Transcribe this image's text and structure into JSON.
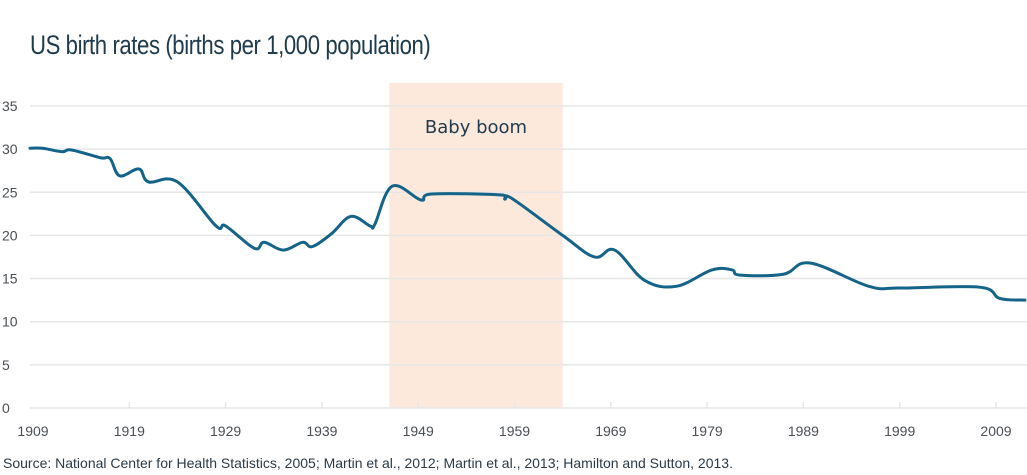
{
  "chart_data": {
    "type": "line",
    "title": "US birth rates (births per 1,000 population)",
    "xlabel": "",
    "ylabel": "",
    "xlim": [
      1909,
      2012
    ],
    "ylim": [
      0,
      35
    ],
    "grid": true,
    "x_ticks": [
      1909,
      1919,
      1929,
      1939,
      1949,
      1959,
      1969,
      1979,
      1989,
      1999,
      2009
    ],
    "x_tick_labels": [
      "1909",
      "1919",
      "1929",
      "1939",
      "1949",
      "1959",
      "1969",
      "1979",
      "1989",
      "1999",
      "2009"
    ],
    "y_ticks": [
      0,
      5,
      10,
      15,
      20,
      25,
      30,
      35
    ],
    "y_tick_labels": [
      "0",
      "5",
      "10",
      "15",
      "20",
      "25",
      "30",
      "35"
    ],
    "series": [
      {
        "name": "Birth rate",
        "color": "#14648a",
        "x": [
          1909,
          1910,
          1912,
          1913,
          1916,
          1917,
          1918,
          1920,
          1921,
          1924,
          1928,
          1929,
          1932,
          1933,
          1935,
          1937,
          1938,
          1940,
          1942,
          1944,
          1944.5,
          1946.3,
          1949.3,
          1950.4,
          1957.5,
          1958,
          1958.7,
          1964,
          1967.3,
          1969.4,
          1972.5,
          1975.8,
          1979.5,
          1981.6,
          1982.4,
          1986.9,
          1989.7,
          1995.8,
          1999,
          2007.3,
          2009.4,
          2012
        ],
        "values": [
          30.1,
          30.1,
          29.7,
          29.9,
          29.0,
          28.9,
          26.9,
          27.7,
          26.2,
          26.2,
          21.1,
          21.1,
          18.5,
          19.2,
          18.3,
          19.2,
          18.7,
          20.2,
          22.2,
          21.1,
          21.3,
          25.7,
          24.1,
          24.8,
          24.7,
          24.2,
          24.3,
          20.0,
          17.5,
          18.3,
          14.8,
          14.1,
          16.0,
          16.0,
          15.4,
          15.5,
          16.8,
          14.1,
          13.9,
          14.0,
          12.7,
          12.5
        ]
      }
    ],
    "annotations": [
      {
        "type": "shaded-region",
        "label": "Baby boom",
        "x_start": 1946,
        "x_end": 1964,
        "color": "#fde9dc"
      }
    ],
    "source": "Source: National Center for Health Statistics, 2005; Martin et al., 2012; Martin et al., 2013; Hamilton and Sutton, 2013."
  },
  "colors": {
    "line": "#14648a",
    "grid": "#e6e6e6",
    "shade": "#fde9dc",
    "title": "#1e3a4c"
  }
}
